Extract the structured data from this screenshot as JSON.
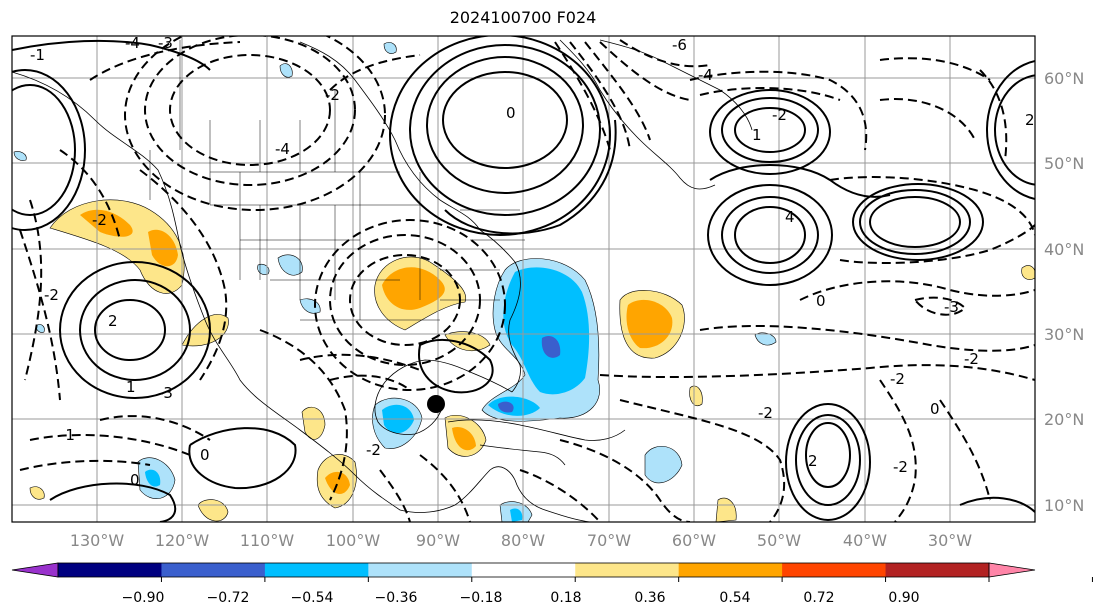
{
  "title": "2024100700 F024",
  "map": {
    "lon_ticks": [
      "130°W",
      "120°W",
      "110°W",
      "100°W",
      "90°W",
      "80°W",
      "70°W",
      "60°W",
      "50°W",
      "40°W",
      "30°W"
    ],
    "lat_ticks": [
      "60°N",
      "50°N",
      "40°N",
      "30°N",
      "20°N",
      "10°N"
    ],
    "contour_labels": [
      "-1",
      "-4",
      "-3",
      "-2",
      "-6",
      "-4",
      "-4",
      "-2",
      "0",
      "1",
      "2",
      "4",
      "-2",
      "-3",
      "-2",
      "2",
      "-3",
      "-2",
      "0",
      "-2",
      "0",
      "-2",
      "1",
      "-1",
      "2",
      "0",
      "-2",
      "-2",
      "0"
    ]
  },
  "colorbar": {
    "ticks": [
      "−0.90",
      "−0.72",
      "−0.54",
      "−0.36",
      "−0.18",
      "0.18",
      "0.36",
      "0.54",
      "0.72",
      "0.90"
    ],
    "colors": [
      "#9932cc",
      "#000080",
      "#3a5fcd",
      "#00bfff",
      "#aee2fa",
      "#ffffff",
      "#fde68a",
      "#ffa500",
      "#ff4500",
      "#b22222",
      "#ff85a8"
    ]
  }
}
